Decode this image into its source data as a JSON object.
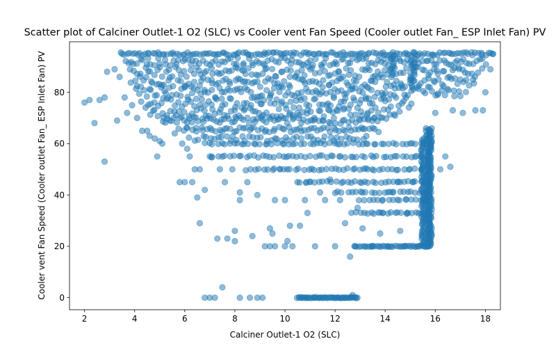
{
  "chart_data": {
    "type": "scatter",
    "title": "Scatter plot of Calciner Outlet-1 O2 (SLC) vs Cooler vent Fan Speed (Cooler outlet Fan_ ESP Inlet Fan) PV",
    "xlabel": "Calciner Outlet-1 O2 (SLC)",
    "ylabel": "Cooler vent Fan Speed (Cooler outlet Fan_ ESP Inlet Fan) PV",
    "xlim": [
      1.4,
      18.6
    ],
    "ylim": [
      -4.7,
      99.7
    ],
    "xticks": [
      2,
      4,
      6,
      8,
      10,
      12,
      14,
      16,
      18
    ],
    "yticks": [
      0,
      20,
      40,
      60,
      80
    ],
    "grid": false,
    "marker_color": "#1f77b4",
    "marker_alpha": 0.5,
    "series": [
      {
        "points": [
          [
            2.0,
            76
          ],
          [
            2.2,
            77
          ],
          [
            2.4,
            68
          ],
          [
            2.6,
            77
          ],
          [
            2.8,
            53
          ],
          [
            2.8,
            78
          ],
          [
            2.9,
            88
          ],
          [
            3.2,
            89
          ],
          [
            3.3,
            69
          ],
          [
            3.4,
            86
          ],
          [
            3.5,
            95
          ],
          [
            3.6,
            78
          ],
          [
            3.7,
            72
          ],
          [
            3.9,
            75
          ],
          [
            4.1,
            70
          ],
          [
            4.3,
            65
          ],
          [
            4.5,
            65
          ],
          [
            4.6,
            63
          ],
          [
            4.8,
            62
          ],
          [
            4.9,
            55
          ],
          [
            5.0,
            61
          ],
          [
            5.1,
            60
          ],
          [
            5.4,
            69
          ],
          [
            5.6,
            64
          ],
          [
            5.8,
            45
          ],
          [
            5.9,
            60
          ],
          [
            6.0,
            45
          ],
          [
            6.1,
            58
          ],
          [
            6.2,
            55
          ],
          [
            6.3,
            45
          ],
          [
            6.4,
            50
          ],
          [
            6.5,
            39
          ],
          [
            6.6,
            29
          ],
          [
            6.6,
            50
          ],
          [
            6.8,
            42
          ],
          [
            6.8,
            0
          ],
          [
            7.0,
            0
          ],
          [
            7.0,
            55
          ],
          [
            7.2,
            0
          ],
          [
            7.3,
            23
          ],
          [
            7.4,
            50
          ],
          [
            7.5,
            4
          ],
          [
            7.6,
            45
          ],
          [
            7.7,
            23
          ],
          [
            7.9,
            50
          ],
          [
            8.0,
            26
          ],
          [
            8.0,
            22
          ],
          [
            8.2,
            0
          ],
          [
            8.2,
            38
          ],
          [
            8.2,
            41
          ],
          [
            8.5,
            45
          ],
          [
            8.6,
            0
          ],
          [
            8.7,
            24
          ],
          [
            8.9,
            0
          ],
          [
            8.9,
            40
          ],
          [
            9.1,
            0
          ],
          [
            9.2,
            20
          ],
          [
            9.4,
            20
          ],
          [
            9.4,
            27
          ],
          [
            9.5,
            25
          ],
          [
            9.6,
            38
          ],
          [
            9.6,
            20
          ],
          [
            9.8,
            50
          ],
          [
            10.0,
            20
          ],
          [
            10.0,
            38
          ],
          [
            10.1,
            22
          ],
          [
            10.2,
            28
          ],
          [
            10.3,
            20
          ],
          [
            10.5,
            45
          ],
          [
            10.6,
            28
          ],
          [
            10.8,
            38
          ],
          [
            10.9,
            33
          ],
          [
            11.0,
            45
          ],
          [
            11.2,
            20
          ],
          [
            11.4,
            41
          ],
          [
            11.6,
            38
          ],
          [
            11.8,
            46
          ],
          [
            12.0,
            20
          ],
          [
            12.2,
            38
          ],
          [
            12.4,
            29
          ],
          [
            12.6,
            16
          ],
          [
            12.7,
            1
          ],
          [
            12.8,
            20
          ],
          [
            12.9,
            35
          ],
          [
            13.0,
            45
          ],
          [
            13.1,
            27
          ],
          [
            13.3,
            50
          ],
          [
            13.5,
            20
          ],
          [
            13.8,
            25
          ],
          [
            13.9,
            33
          ],
          [
            14.1,
            20
          ],
          [
            14.3,
            41
          ],
          [
            14.5,
            45
          ],
          [
            14.6,
            26
          ],
          [
            14.8,
            20
          ],
          [
            14.9,
            33
          ],
          [
            15.1,
            45
          ],
          [
            15.3,
            20
          ],
          [
            15.5,
            38
          ],
          [
            15.7,
            20
          ],
          [
            15.8,
            25
          ],
          [
            16.0,
            72
          ],
          [
            16.1,
            79
          ],
          [
            16.2,
            50
          ],
          [
            16.4,
            55
          ],
          [
            16.6,
            51
          ],
          [
            16.7,
            73
          ],
          [
            17.1,
            72
          ],
          [
            17.6,
            73
          ],
          [
            17.9,
            73
          ],
          [
            18.0,
            80
          ],
          [
            18.2,
            89
          ],
          [
            18.3,
            95
          ]
        ],
        "bands": [
          {
            "x": [
              3.5,
              18.3
            ],
            "y": 95,
            "step": 0.1,
            "jitter": 0.6
          },
          {
            "x": [
              3.6,
              18.1
            ],
            "y": 92,
            "step": 0.12,
            "jitter": 1.5
          },
          {
            "x": [
              3.8,
              17.9
            ],
            "y": 88,
            "step": 0.12,
            "jitter": 2.0
          },
          {
            "x": [
              3.9,
              17.6
            ],
            "y": 84,
            "step": 0.12,
            "jitter": 2.0
          },
          {
            "x": [
              4.1,
              17.2
            ],
            "y": 80,
            "step": 0.12,
            "jitter": 2.0
          },
          {
            "x": [
              4.3,
              15.2
            ],
            "y": 76,
            "step": 0.12,
            "jitter": 2.0
          },
          {
            "x": [
              4.6,
              14.6
            ],
            "y": 72,
            "step": 0.12,
            "jitter": 2.0
          },
          {
            "x": [
              5.1,
              14.0
            ],
            "y": 69,
            "step": 0.12,
            "jitter": 1.2
          },
          {
            "x": [
              5.8,
              13.8
            ],
            "y": 65.5,
            "step": 0.12,
            "jitter": 1.0
          },
          {
            "x": [
              6.2,
              13.3
            ],
            "y": 62,
            "step": 0.16,
            "jitter": 1.0
          },
          {
            "x": [
              6.8,
              15.5
            ],
            "y": 60,
            "step": 0.16,
            "jitter": 0.3
          },
          {
            "x": [
              7.0,
              15.6
            ],
            "y": 55,
            "step": 0.16,
            "jitter": 0.4
          },
          {
            "x": [
              8.5,
              15.7
            ],
            "y": 50,
            "step": 0.16,
            "jitter": 0.4
          },
          {
            "x": [
              10.6,
              15.7
            ],
            "y": 45,
            "step": 0.16,
            "jitter": 0.4
          },
          {
            "x": [
              12.0,
              15.7
            ],
            "y": 41,
            "step": 0.16,
            "jitter": 0.3
          },
          {
            "x": [
              13.0,
              15.7
            ],
            "y": 38,
            "step": 0.16,
            "jitter": 0.3
          },
          {
            "x": [
              12.7,
              15.6
            ],
            "y": 33,
            "step": 0.14,
            "jitter": 0.3
          },
          {
            "x": [
              12.8,
              15.7
            ],
            "y": 20,
            "step": 0.08,
            "jitter": 0.2
          },
          {
            "x": [
              10.5,
              12.9
            ],
            "y": 0,
            "step": 0.05,
            "jitter": 0.2
          }
        ],
        "columns": [
          {
            "x": 15.5,
            "y": [
              20,
              62
            ],
            "step": 0.6,
            "jitter": 0.06
          },
          {
            "x": 15.7,
            "y": [
              20,
              66
            ],
            "step": 0.5,
            "jitter": 0.08
          },
          {
            "x": 15.8,
            "y": [
              20,
              66
            ],
            "step": 0.5,
            "jitter": 0.06
          },
          {
            "x": 14.3,
            "y": [
              86,
              95
            ],
            "step": 0.8,
            "jitter": 0.1
          },
          {
            "x": 15.1,
            "y": [
              82,
              95
            ],
            "step": 0.8,
            "jitter": 0.1
          }
        ]
      }
    ]
  }
}
